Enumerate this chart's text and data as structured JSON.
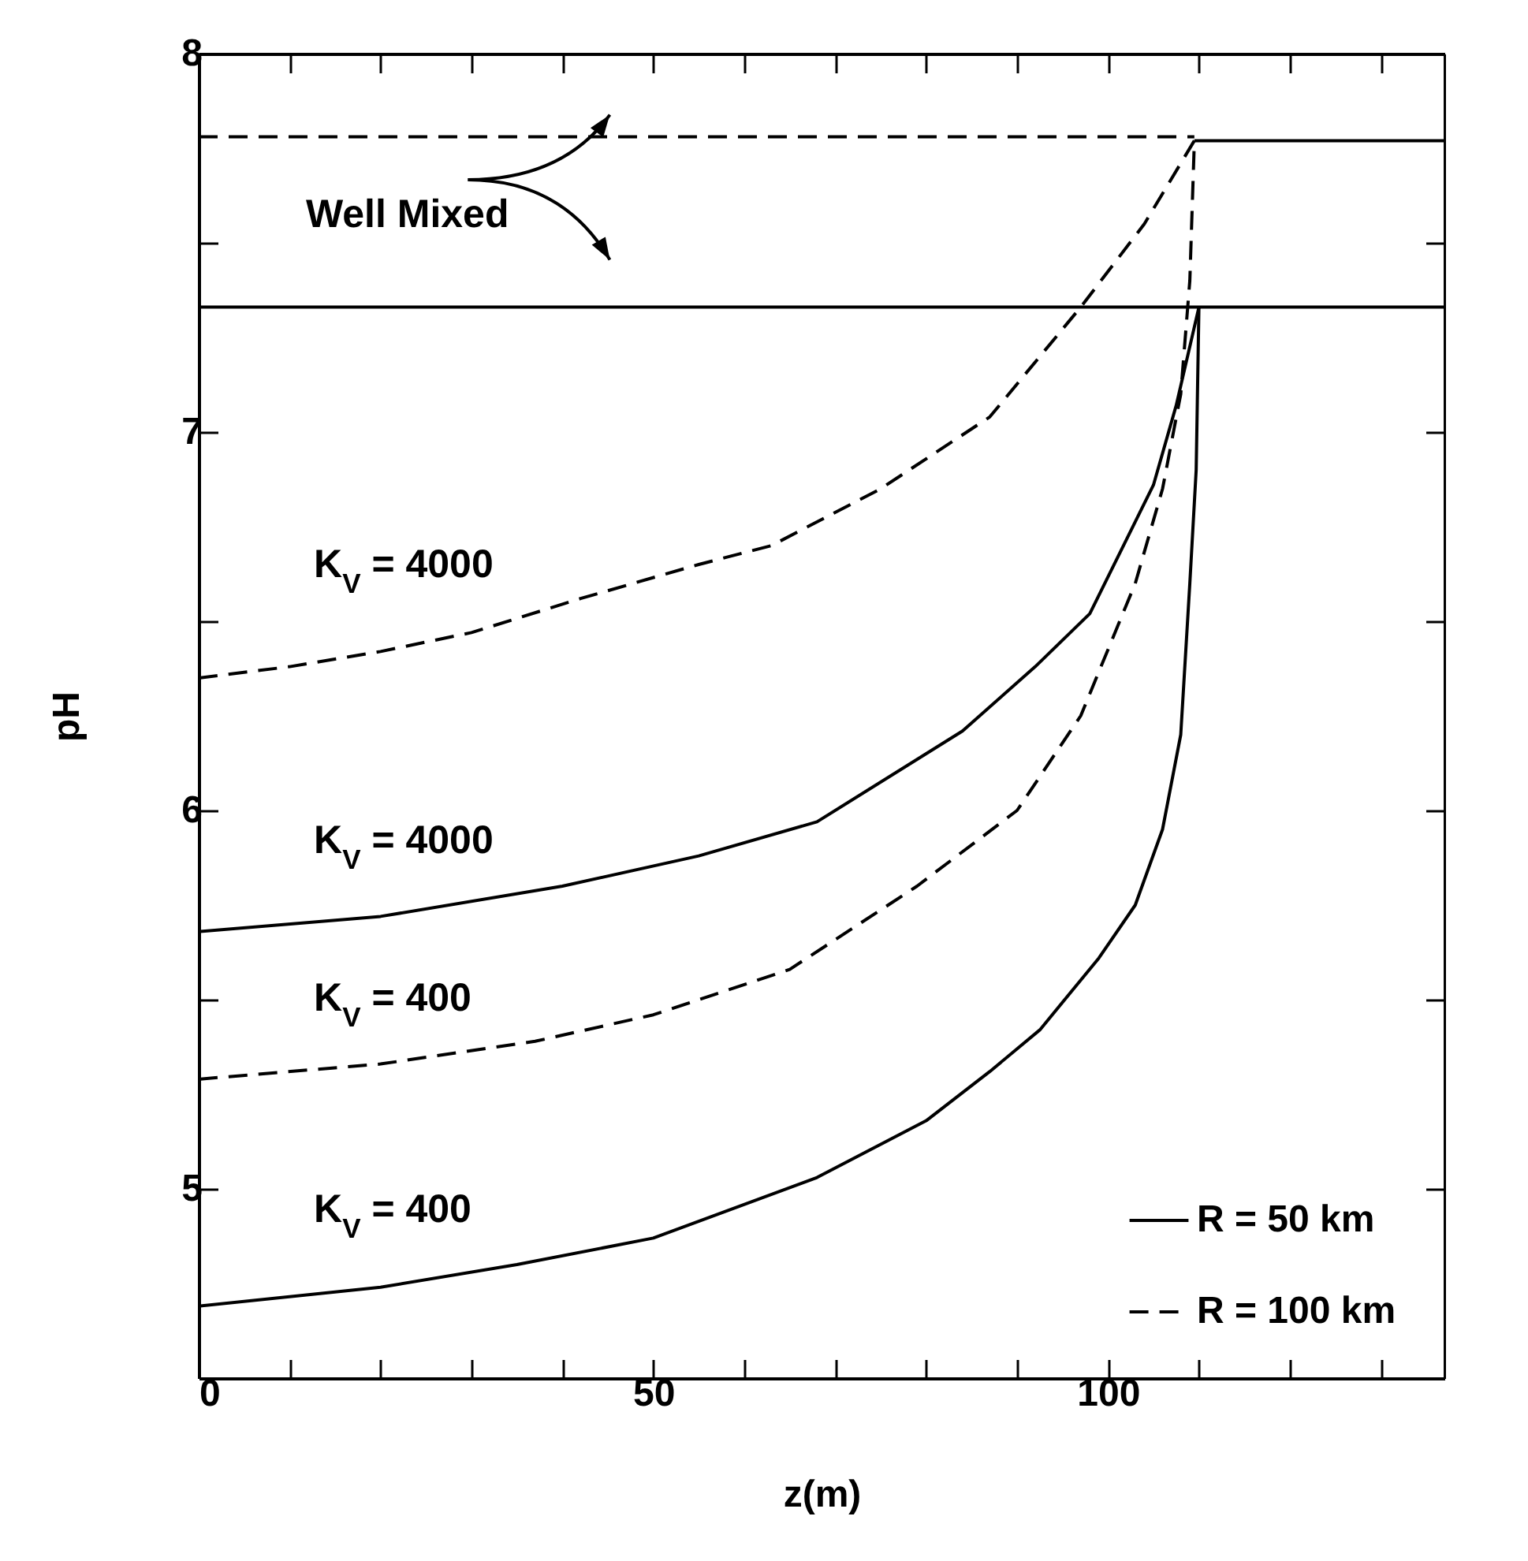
{
  "chart_data": {
    "type": "line",
    "xlabel": "z(m)",
    "ylabel": "pH",
    "xlim": [
      0,
      137
    ],
    "ylim": [
      4.5,
      8
    ],
    "xticks": [
      0,
      {
        "value": 10,
        "label": null
      },
      {
        "value": 20,
        "label": null
      },
      {
        "value": 30,
        "label": null
      },
      {
        "value": 40,
        "label": null
      },
      50,
      {
        "value": 60,
        "label": null
      },
      {
        "value": 70,
        "label": null
      },
      {
        "value": 80,
        "label": null
      },
      {
        "value": 90,
        "label": null
      },
      100,
      {
        "value": 110,
        "label": null
      },
      {
        "value": 120,
        "label": null
      },
      {
        "value": 130,
        "label": null
      }
    ],
    "yticks": [
      {
        "value": 4.5,
        "label": null
      },
      5,
      {
        "value": 5.5,
        "label": null
      },
      6,
      {
        "value": 6.5,
        "label": null
      },
      7,
      {
        "value": 7.5,
        "label": null
      },
      8
    ],
    "grid": false,
    "legend": "bottom right",
    "marker": "none",
    "series": [
      {
        "name": "R =  50 km",
        "color": "#000000",
        "line_style": "solid",
        "x": [
          0,
          137
        ],
        "values": [
          7.33,
          7.33
        ]
      },
      {
        "name": "R = 100 km",
        "color": "#000000",
        "line_style": "dashed",
        "x": [
          0,
          109.5
        ],
        "values": [
          7.78,
          7.78
        ]
      },
      {
        "color": "#000000",
        "line_style": "solid",
        "x": [
          109.5,
          137
        ],
        "values": [
          7.77,
          7.77
        ]
      },
      {
        "color": "#000000",
        "line_style": "dashed",
        "x": [
          0,
          10,
          20,
          30,
          42,
          55,
          63,
          75,
          87,
          97,
          104,
          109.5
        ],
        "values": [
          6.35,
          6.38,
          6.42,
          6.47,
          6.56,
          6.65,
          6.7,
          6.85,
          7.04,
          7.33,
          7.55,
          7.77
        ]
      },
      {
        "color": "#000000",
        "line_style": "solid",
        "x": [
          0,
          20,
          40,
          55,
          68,
          84,
          92,
          98,
          105,
          107.5,
          110
        ],
        "values": [
          5.68,
          5.72,
          5.8,
          5.88,
          5.97,
          6.21,
          6.38,
          6.52,
          6.86,
          7.07,
          7.33
        ]
      },
      {
        "color": "#000000",
        "line_style": "dashed",
        "x": [
          0,
          20,
          37,
          50,
          65,
          79,
          90,
          97,
          103,
          106,
          108,
          109,
          109.5
        ],
        "values": [
          5.29,
          5.33,
          5.39,
          5.46,
          5.58,
          5.8,
          6.0,
          6.25,
          6.6,
          6.85,
          7.1,
          7.4,
          7.77
        ]
      },
      {
        "color": "#000000",
        "line_style": "solid",
        "x": [
          0,
          20,
          35,
          50,
          68,
          80,
          87,
          92.5,
          99,
          103,
          106,
          108,
          109,
          109.7,
          110
        ],
        "values": [
          4.69,
          4.74,
          4.8,
          4.87,
          5.03,
          5.18,
          5.31,
          5.42,
          5.61,
          5.75,
          5.95,
          6.2,
          6.6,
          6.9,
          7.33
        ]
      }
    ],
    "annotations": [
      "Well Mixed",
      "K$_{V}$ = 4000",
      "K$_{V}$ = 4000",
      "K$_{V}$ = 400",
      "K$_{V}$ = 400"
    ]
  }
}
